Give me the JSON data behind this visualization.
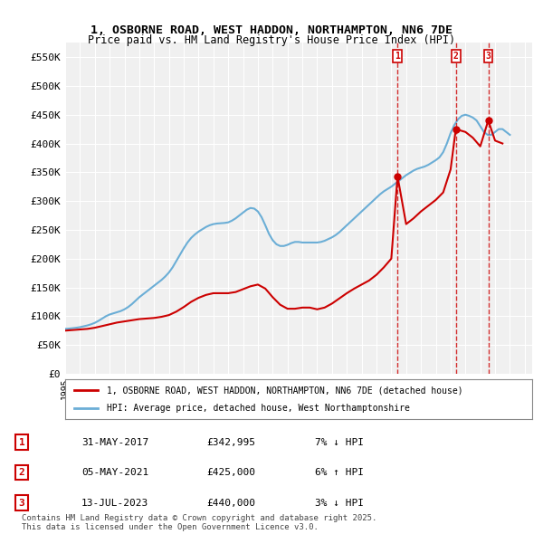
{
  "title_line1": "1, OSBORNE ROAD, WEST HADDON, NORTHAMPTON, NN6 7DE",
  "title_line2": "Price paid vs. HM Land Registry's House Price Index (HPI)",
  "ylabel_ticks": [
    "£0",
    "£50K",
    "£100K",
    "£150K",
    "£200K",
    "£250K",
    "£300K",
    "£350K",
    "£400K",
    "£450K",
    "£500K",
    "£550K"
  ],
  "ytick_values": [
    0,
    50000,
    100000,
    150000,
    200000,
    250000,
    300000,
    350000,
    400000,
    450000,
    500000,
    550000
  ],
  "ylim": [
    0,
    575000
  ],
  "xlim_start": 1995.0,
  "xlim_end": 2026.5,
  "legend_line1": "1, OSBORNE ROAD, WEST HADDON, NORTHAMPTON, NN6 7DE (detached house)",
  "legend_line2": "HPI: Average price, detached house, West Northamptonshire",
  "sale1_label": "1",
  "sale1_date": "31-MAY-2017",
  "sale1_price": "£342,995",
  "sale1_hpi": "7% ↓ HPI",
  "sale1_x": 2017.42,
  "sale1_y": 342995,
  "sale2_label": "2",
  "sale2_date": "05-MAY-2021",
  "sale2_price": "£425,000",
  "sale2_hpi": "6% ↑ HPI",
  "sale2_x": 2021.35,
  "sale2_y": 425000,
  "sale3_label": "3",
  "sale3_date": "13-JUL-2023",
  "sale3_price": "£440,000",
  "sale3_hpi": "3% ↓ HPI",
  "sale3_x": 2023.54,
  "sale3_y": 440000,
  "hpi_color": "#6baed6",
  "price_color": "#cc0000",
  "bg_color": "#f0f0f0",
  "footnote": "Contains HM Land Registry data © Crown copyright and database right 2025.\nThis data is licensed under the Open Government Licence v3.0.",
  "hpi_years": [
    1995.0,
    1995.25,
    1995.5,
    1995.75,
    1996.0,
    1996.25,
    1996.5,
    1996.75,
    1997.0,
    1997.25,
    1997.5,
    1997.75,
    1998.0,
    1998.25,
    1998.5,
    1998.75,
    1999.0,
    1999.25,
    1999.5,
    1999.75,
    2000.0,
    2000.25,
    2000.5,
    2000.75,
    2001.0,
    2001.25,
    2001.5,
    2001.75,
    2002.0,
    2002.25,
    2002.5,
    2002.75,
    2003.0,
    2003.25,
    2003.5,
    2003.75,
    2004.0,
    2004.25,
    2004.5,
    2004.75,
    2005.0,
    2005.25,
    2005.5,
    2005.75,
    2006.0,
    2006.25,
    2006.5,
    2006.75,
    2007.0,
    2007.25,
    2007.5,
    2007.75,
    2008.0,
    2008.25,
    2008.5,
    2008.75,
    2009.0,
    2009.25,
    2009.5,
    2009.75,
    2010.0,
    2010.25,
    2010.5,
    2010.75,
    2011.0,
    2011.25,
    2011.5,
    2011.75,
    2012.0,
    2012.25,
    2012.5,
    2012.75,
    2013.0,
    2013.25,
    2013.5,
    2013.75,
    2014.0,
    2014.25,
    2014.5,
    2014.75,
    2015.0,
    2015.25,
    2015.5,
    2015.75,
    2016.0,
    2016.25,
    2016.5,
    2016.75,
    2017.0,
    2017.25,
    2017.5,
    2017.75,
    2018.0,
    2018.25,
    2018.5,
    2018.75,
    2019.0,
    2019.25,
    2019.5,
    2019.75,
    2020.0,
    2020.25,
    2020.5,
    2020.75,
    2021.0,
    2021.25,
    2021.5,
    2021.75,
    2022.0,
    2022.25,
    2022.5,
    2022.75,
    2023.0,
    2023.25,
    2023.5,
    2023.75,
    2024.0,
    2024.25,
    2024.5,
    2024.75,
    2025.0
  ],
  "hpi_values": [
    78000,
    78500,
    79200,
    80000,
    81000,
    82500,
    84000,
    86000,
    88500,
    92000,
    96000,
    100000,
    103000,
    105000,
    107000,
    109000,
    112000,
    116000,
    121000,
    127000,
    133000,
    138000,
    143000,
    148000,
    153000,
    158000,
    163000,
    169000,
    176000,
    185000,
    196000,
    207000,
    218000,
    228000,
    236000,
    242000,
    247000,
    251000,
    255000,
    258000,
    260000,
    261000,
    261500,
    262000,
    263000,
    266000,
    270000,
    275000,
    280000,
    285000,
    288000,
    287000,
    282000,
    272000,
    258000,
    243000,
    232000,
    225000,
    222000,
    222000,
    224000,
    227000,
    229000,
    229000,
    228000,
    228000,
    228000,
    228000,
    228000,
    229000,
    231000,
    234000,
    237000,
    241000,
    246000,
    252000,
    258000,
    264000,
    270000,
    276000,
    282000,
    288000,
    294000,
    300000,
    306000,
    312000,
    317000,
    321000,
    325000,
    330000,
    335000,
    340000,
    345000,
    349000,
    353000,
    356000,
    358000,
    360000,
    363000,
    367000,
    371000,
    376000,
    385000,
    400000,
    418000,
    432000,
    442000,
    448000,
    450000,
    448000,
    445000,
    440000,
    430000,
    420000,
    415000,
    415000,
    420000,
    425000,
    425000,
    420000,
    415000
  ],
  "price_years": [
    1995.0,
    1995.5,
    1996.0,
    1996.5,
    1997.0,
    1997.5,
    1998.0,
    1998.5,
    1999.0,
    1999.5,
    2000.0,
    2000.5,
    2001.0,
    2001.5,
    2002.0,
    2002.5,
    2003.0,
    2003.5,
    2004.0,
    2004.5,
    2005.0,
    2005.5,
    2006.0,
    2006.5,
    2007.0,
    2007.5,
    2008.0,
    2008.5,
    2009.0,
    2009.5,
    2010.0,
    2010.5,
    2011.0,
    2011.5,
    2012.0,
    2012.5,
    2013.0,
    2013.5,
    2014.0,
    2014.5,
    2015.0,
    2015.5,
    2016.0,
    2016.5,
    2017.0,
    2017.42,
    2018.0,
    2018.5,
    2019.0,
    2019.5,
    2020.0,
    2020.5,
    2021.0,
    2021.35,
    2022.0,
    2022.5,
    2023.0,
    2023.54,
    2024.0,
    2024.5
  ],
  "price_values": [
    75000,
    76000,
    77000,
    78000,
    80000,
    83000,
    86000,
    89000,
    91000,
    93000,
    95000,
    96000,
    97000,
    99000,
    102000,
    108000,
    116000,
    125000,
    132000,
    137000,
    140000,
    140000,
    140000,
    142000,
    147000,
    152000,
    155000,
    148000,
    133000,
    120000,
    113000,
    113000,
    115000,
    115000,
    112000,
    115000,
    122000,
    131000,
    140000,
    148000,
    155000,
    162000,
    172000,
    185000,
    200000,
    342995,
    260000,
    270000,
    282000,
    292000,
    302000,
    315000,
    355000,
    425000,
    420000,
    410000,
    395000,
    440000,
    405000,
    400000
  ]
}
